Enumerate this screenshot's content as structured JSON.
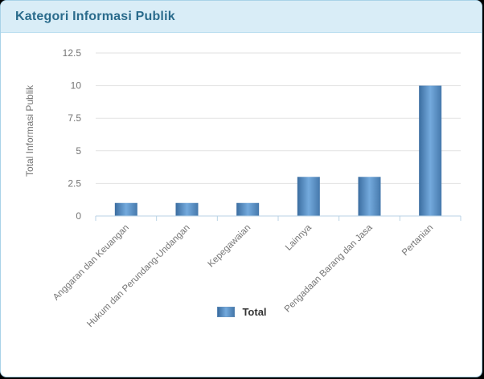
{
  "header": {
    "title": "Kategori Informasi Publik"
  },
  "colors": {
    "header_bg": "#d9edf7",
    "header_border": "#bcdff0",
    "card_border": "#a9d3e8",
    "title_text": "#2a6b8c",
    "bar_gradient_edge_left": "#3b6da0",
    "bar_gradient_mid": "#74aadd",
    "bar_gradient_edge_right": "#4679ac",
    "gridline": "#e2e2e2",
    "axis_line": "#b9d2e4",
    "axis_text": "#757575",
    "legend_text": "#333333"
  },
  "chart_data": {
    "type": "bar",
    "title": "Kategori Informasi Publik",
    "categories": [
      "Anggaran dan Keuangan",
      "Hukum dan Perundang-Undangan",
      "Kepegawaian",
      "Lainnya",
      "Pengadaan Barang dan Jasa",
      "Pertanian"
    ],
    "series": [
      {
        "name": "Total",
        "values": [
          1,
          1,
          1,
          3,
          3,
          10
        ]
      }
    ],
    "xlabel": "",
    "ylabel": "Total Informasi Publik",
    "ylim": [
      0,
      12.5
    ],
    "yticks": [
      0,
      2.5,
      5,
      7.5,
      10,
      12.5
    ],
    "grid": true,
    "legend_position": "bottom",
    "x_label_rotation": -45
  },
  "legend": {
    "label": "Total"
  }
}
